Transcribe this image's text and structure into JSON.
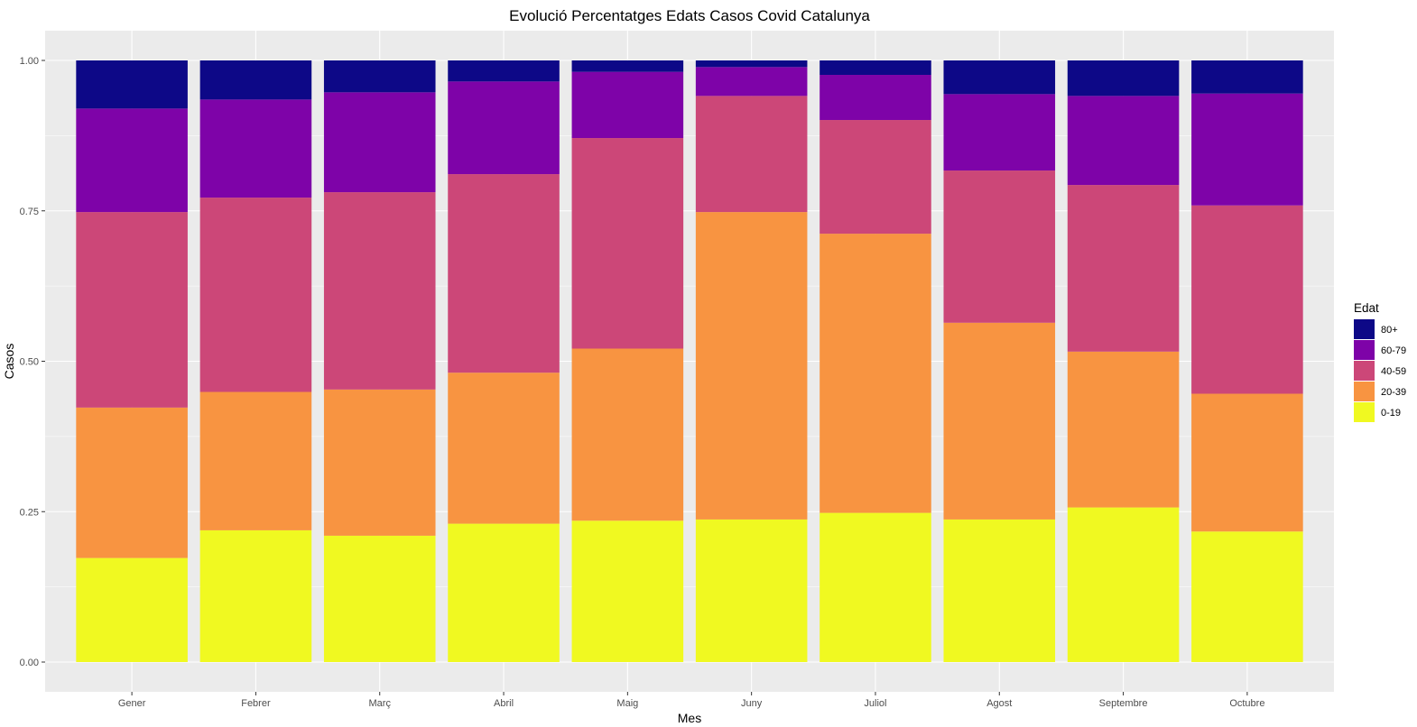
{
  "chart_data": {
    "type": "bar",
    "stacked": true,
    "title": "Evolució Percentatges Edats Casos Covid Catalunya",
    "xlabel": "Mes",
    "ylabel": "Casos",
    "ylim": [
      0,
      1
    ],
    "yticks": [
      "0.00",
      "0.25",
      "0.50",
      "0.75",
      "1.00"
    ],
    "grid": true,
    "categories": [
      "Gener",
      "Febrer",
      "Març",
      "Abril",
      "Maig",
      "Juny",
      "Juliol",
      "Agost",
      "Septembre",
      "Octubre"
    ],
    "series": [
      {
        "name": "0-19",
        "color": "#F0F921",
        "values": [
          0.173,
          0.219,
          0.21,
          0.23,
          0.235,
          0.237,
          0.248,
          0.237,
          0.257,
          0.217
        ]
      },
      {
        "name": "20-39",
        "color": "#F89441",
        "values": [
          0.25,
          0.23,
          0.243,
          0.251,
          0.286,
          0.511,
          0.464,
          0.327,
          0.259,
          0.229
        ]
      },
      {
        "name": "40-59",
        "color": "#CC4778",
        "values": [
          0.325,
          0.323,
          0.328,
          0.33,
          0.35,
          0.193,
          0.189,
          0.253,
          0.277,
          0.313
        ]
      },
      {
        "name": "60-79",
        "color": "#7E03A8",
        "values": [
          0.172,
          0.163,
          0.166,
          0.154,
          0.11,
          0.048,
          0.075,
          0.127,
          0.148,
          0.186
        ]
      },
      {
        "name": "80+",
        "color": "#0D0887",
        "values": [
          0.08,
          0.065,
          0.053,
          0.035,
          0.019,
          0.011,
          0.024,
          0.056,
          0.059,
          0.055
        ]
      }
    ],
    "legend": {
      "title": "Edat",
      "position": "right",
      "order": [
        "80+",
        "60-79",
        "40-59",
        "20-39",
        "0-19"
      ]
    },
    "colors": {
      "panel_background": "#EBEBEB",
      "grid": "#FFFFFF"
    }
  }
}
